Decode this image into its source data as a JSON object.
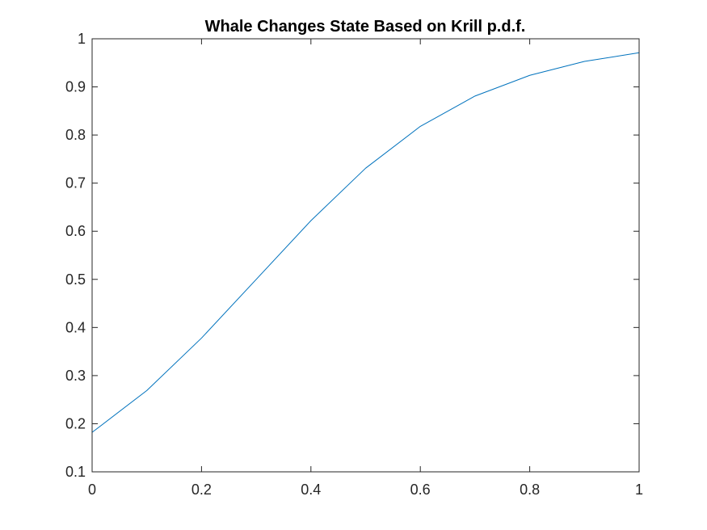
{
  "chart_data": {
    "type": "line",
    "title": "Whale Changes State Based on Krill p.d.f.",
    "xlabel": "",
    "ylabel": "",
    "xlim": [
      0,
      1
    ],
    "ylim": [
      0.1,
      1
    ],
    "x_ticks": [
      "0",
      "0.2",
      "0.4",
      "0.6",
      "0.8",
      "1"
    ],
    "y_ticks": [
      "0.1",
      "0.2",
      "0.3",
      "0.4",
      "0.5",
      "0.6",
      "0.7",
      "0.8",
      "0.9",
      "1"
    ],
    "grid": false,
    "legend": "none",
    "series": [
      {
        "color": "#0072BD",
        "x": [
          0,
          0.1,
          0.2,
          0.3,
          0.4,
          0.5,
          0.6,
          0.7,
          0.8,
          0.9,
          1.0
        ],
        "y": [
          0.182,
          0.269,
          0.378,
          0.5,
          0.622,
          0.731,
          0.818,
          0.881,
          0.924,
          0.953,
          0.971
        ]
      }
    ]
  }
}
